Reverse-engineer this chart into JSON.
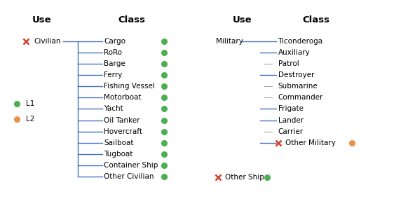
{
  "title_left_use": "Use",
  "title_left_class": "Class",
  "title_right_use": "Use",
  "title_right_class": "Class",
  "civilian_label": "Civilian",
  "civilian_classes": [
    "Cargo",
    "RoRo",
    "Barge",
    "Ferry",
    "Fishing Vessel",
    "Motorboat",
    "Yacht",
    "Oil Tanker",
    "Hovercraft",
    "Sailboat",
    "Tugboat",
    "Container Ship",
    "Other Civilian"
  ],
  "civilian_dot_color": "#4caf50",
  "military_label": "Military",
  "military_classes": [
    "Ticonderoga",
    "Auxiliary",
    "Patrol",
    "Destroyer",
    "Submarine",
    "Commander",
    "Frigate",
    "Lander",
    "Carrier",
    "Other Military"
  ],
  "military_has_blue_line": [
    true,
    true,
    false,
    true,
    false,
    false,
    true,
    true,
    false,
    true
  ],
  "other_ship_label": "Other Ship",
  "other_ship_dot_color": "#4caf50",
  "other_military_dot_color": "#e8924a",
  "legend_l1_color": "#4caf50",
  "legend_l2_color": "#e8924a",
  "legend_l1": "L1",
  "legend_l2": "L2",
  "cross_color": "#d63c2a",
  "line_color_blue": "#4472c4",
  "line_color_gray": "#aaaaaa",
  "bg_color": "#ffffff",
  "figsize": [
    5.82,
    2.84
  ],
  "dpi": 100,
  "fs": 7.5,
  "fs_title": 9.5
}
